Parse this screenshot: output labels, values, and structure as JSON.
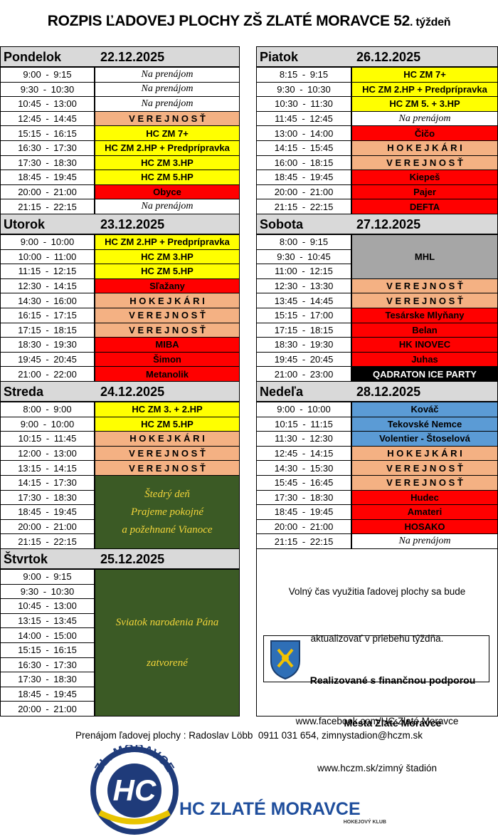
{
  "header": {
    "title": "ROZPIS ĽADOVEJ PLOCHY ZŠ ZLATÉ MORAVCE 52",
    "title_suffix": ". týždeň"
  },
  "left_column": [
    {
      "name": "Pondelok",
      "date": "22.12.2025",
      "rows": [
        {
          "times": [
            "9:00 - 9:15"
          ],
          "activity": "Na prenájom",
          "color": "#ffffff"
        },
        {
          "times": [
            "9:30 - 10:30"
          ],
          "activity": "Na prenájom",
          "color": "#ffffff"
        },
        {
          "times": [
            "10:45 - 13:00"
          ],
          "activity": "Na prenájom",
          "color": "#ffffff"
        },
        {
          "times": [
            "12:45 - 14:45"
          ],
          "activity": "V E R E J N O S Ť",
          "color": "#f4b183"
        },
        {
          "times": [
            "15:15 - 16:15"
          ],
          "activity": "HC ZM 7+",
          "color": "#ffff00"
        },
        {
          "times": [
            "16:30 - 17:30"
          ],
          "activity": "HC ZM 2.HP + Predprípravka",
          "color": "#ffff00"
        },
        {
          "times": [
            "17:30 - 18:30"
          ],
          "activity": "HC ZM 3.HP",
          "color": "#ffff00"
        },
        {
          "times": [
            "18:45 - 19:45"
          ],
          "activity": "HC ZM 5.HP",
          "color": "#ffff00"
        },
        {
          "times": [
            "20:00 - 21:00"
          ],
          "activity": "Obyce",
          "color": "#ff0000"
        },
        {
          "times": [
            "21:15 - 22:15"
          ],
          "activity": "Na prenájom",
          "color": "#ffffff"
        }
      ]
    },
    {
      "name": "Utorok",
      "date": "23.12.2025",
      "rows": [
        {
          "times": [
            "9:00 - 10:00"
          ],
          "activity": "HC ZM 2.HP + Predprípravka",
          "color": "#ffff00"
        },
        {
          "times": [
            "10:00 - 11:00"
          ],
          "activity": "HC ZM 3.HP",
          "color": "#ffff00"
        },
        {
          "times": [
            "11:15 - 12:15"
          ],
          "activity": "HC ZM 5.HP",
          "color": "#ffff00"
        },
        {
          "times": [
            "12:30 - 14:15"
          ],
          "activity": "Sľažany",
          "color": "#ff0000"
        },
        {
          "times": [
            "14:30 - 16:00"
          ],
          "activity": "H O K E J K Á R I",
          "color": "#f4b183"
        },
        {
          "times": [
            "16:15 - 17:15"
          ],
          "activity": "V E R E J N O S Ť",
          "color": "#f4b183"
        },
        {
          "times": [
            "17:15 - 18:15"
          ],
          "activity": "V E R E J N O S Ť",
          "color": "#f4b183"
        },
        {
          "times": [
            "18:30 - 19:30"
          ],
          "activity": "MIBA",
          "color": "#ff0000"
        },
        {
          "times": [
            "19:45 - 20:45"
          ],
          "activity": "Šimon",
          "color": "#ff0000"
        },
        {
          "times": [
            "21:00 - 22:00"
          ],
          "activity": "Metanolik",
          "color": "#ff0000"
        }
      ]
    },
    {
      "name": "Streda",
      "date": "24.12.2025",
      "rows": [
        {
          "times": [
            "8:00 - 9:00"
          ],
          "activity": "HC ZM 3. + 2.HP",
          "color": "#ffff00"
        },
        {
          "times": [
            "9:00 - 10:00"
          ],
          "activity": "HC ZM 5.HP",
          "color": "#ffff00"
        },
        {
          "times": [
            "10:15 - 11:45"
          ],
          "activity": "H O K E J K Á R I",
          "color": "#f4b183"
        },
        {
          "times": [
            "12:00 - 13:00"
          ],
          "activity": "V E R E J N O S Ť",
          "color": "#f4b183"
        },
        {
          "times": [
            "13:15 - 14:15"
          ],
          "activity": "V E R E J N O S Ť",
          "color": "#f4b183"
        },
        {
          "times": [
            "14:15 - 17:30",
            "17:30 - 18:30",
            "18:45 - 19:45",
            "20:00 - 21:00",
            "21:15 - 22:15"
          ],
          "activity": [
            "Štedrý deň",
            "Prajeme pokojné",
            "a požehnané Vianoce"
          ],
          "color": "#3b5a25"
        }
      ]
    },
    {
      "name": "Štvrtok",
      "date": "25.12.2025",
      "rows": [
        {
          "times": [
            "9:00 - 9:15",
            "9:30 - 10:30",
            "10:45 - 13:00",
            "13:15 - 13:45",
            "14:00 - 15:00",
            "15:15 - 16:15",
            "16:30 - 17:30",
            "17:30 - 18:30",
            "18:45 - 19:45",
            "20:00 - 21:00"
          ],
          "activity": [
            "Sviatok narodenia Pána",
            "zatvorené"
          ],
          "color": "#3b5a25"
        }
      ]
    }
  ],
  "right_column": [
    {
      "name": "Piatok",
      "date": "26.12.2025",
      "rows": [
        {
          "times": [
            "8:15 - 9:15"
          ],
          "activity": "HC ZM 7+",
          "color": "#ffff00"
        },
        {
          "times": [
            "9:30 - 10:30"
          ],
          "activity": "HC ZM 2.HP + Predprípravka",
          "color": "#ffff00"
        },
        {
          "times": [
            "10:30 - 11:30"
          ],
          "activity": "HC ZM 5. + 3.HP",
          "color": "#ffff00"
        },
        {
          "times": [
            "11:45 - 12:45"
          ],
          "activity": "Na prenájom",
          "color": "#ffffff"
        },
        {
          "times": [
            "13:00 - 14:00"
          ],
          "activity": "Čičo",
          "color": "#ff0000"
        },
        {
          "times": [
            "14:15 - 15:45"
          ],
          "activity": "H O K E J K Á R I",
          "color": "#f4b183"
        },
        {
          "times": [
            "16:00 - 18:15"
          ],
          "activity": "V E R E J N O S Ť",
          "color": "#f4b183"
        },
        {
          "times": [
            "18:45 - 19:45"
          ],
          "activity": "Kiepeš",
          "color": "#ff0000"
        },
        {
          "times": [
            "20:00 - 21:00"
          ],
          "activity": "Pajer",
          "color": "#ff0000"
        },
        {
          "times": [
            "21:15 - 22:15"
          ],
          "activity": "DEFTA",
          "color": "#ff0000"
        }
      ]
    },
    {
      "name": "Sobota",
      "date": "27.12.2025",
      "rows": [
        {
          "times": [
            "8:00 - 9:15",
            "9:30 - 10:45",
            "11:00 - 12:15"
          ],
          "activity": "MHL",
          "color": "#a6a6a6"
        },
        {
          "times": [
            "12:30 - 13:30"
          ],
          "activity": "V E R E J N O S Ť",
          "color": "#f4b183"
        },
        {
          "times": [
            "13:45 - 14:45"
          ],
          "activity": "V E R E J N O S Ť",
          "color": "#f4b183"
        },
        {
          "times": [
            "15:15 - 17:00"
          ],
          "activity": "Tesárske Mlyňany",
          "color": "#ff0000"
        },
        {
          "times": [
            "17:15 - 18:15"
          ],
          "activity": "Belan",
          "color": "#ff0000"
        },
        {
          "times": [
            "18:30 - 19:30"
          ],
          "activity": "HK INOVEC",
          "color": "#ff0000"
        },
        {
          "times": [
            "19:45 - 20:45"
          ],
          "activity": "Juhas",
          "color": "#ff0000"
        },
        {
          "times": [
            "21:00 - 23:00"
          ],
          "activity": "QADRATON ICE PARTY",
          "color": "#000000"
        }
      ]
    },
    {
      "name": "Nedeľa",
      "date": "28.12.2025",
      "rows": [
        {
          "times": [
            "9:00 - 10:00"
          ],
          "activity": "Kováč",
          "color": "#5b9bd5"
        },
        {
          "times": [
            "10:15 - 11:15"
          ],
          "activity": "Tekovské Nemce",
          "color": "#5b9bd5"
        },
        {
          "times": [
            "11:30 - 12:30"
          ],
          "activity": "Volentier - Štoselová",
          "color": "#5b9bd5"
        },
        {
          "times": [
            "12:45 - 14:15"
          ],
          "activity": "H O K E J K Á R I",
          "color": "#f4b183"
        },
        {
          "times": [
            "14:30 - 15:30"
          ],
          "activity": "V E R E J N O S Ť",
          "color": "#f4b183"
        },
        {
          "times": [
            "15:45 - 16:45"
          ],
          "activity": "V E R E J N O S Ť",
          "color": "#f4b183"
        },
        {
          "times": [
            "17:30 - 18:30"
          ],
          "activity": "Hudec",
          "color": "#ff0000"
        },
        {
          "times": [
            "18:45 - 19:45"
          ],
          "activity": "Amateri",
          "color": "#ff0000"
        },
        {
          "times": [
            "20:00 - 21:00"
          ],
          "activity": "HOSAKO",
          "color": "#ff0000"
        },
        {
          "times": [
            "21:15 - 22:15"
          ],
          "activity": "Na prenájom",
          "color": "#ffffff"
        }
      ]
    }
  ],
  "info": {
    "lines": [
      "Volný čas využitia ľadovej plochy sa bude",
      "aktualizovať v priebehu týždňa.",
      "www.facebook.com/HC Zlaté Moravce",
      "www.hczm.sk/zimný štadión"
    ],
    "support": [
      "Realizované s finančnou podporou",
      "Mesta Zlaté Moravce"
    ]
  },
  "footer": {
    "contact": "Prenájom ľadovej plochy : Radoslav Löbb  0911 031 654, zimnystadion@hczm.sk",
    "logo_ring": "ZL. MORAVCE",
    "logo_letters": "HC",
    "club": "HC ZLATÉ MORAVCE",
    "club_sub": "HOKEJOVÝ KLUB"
  }
}
